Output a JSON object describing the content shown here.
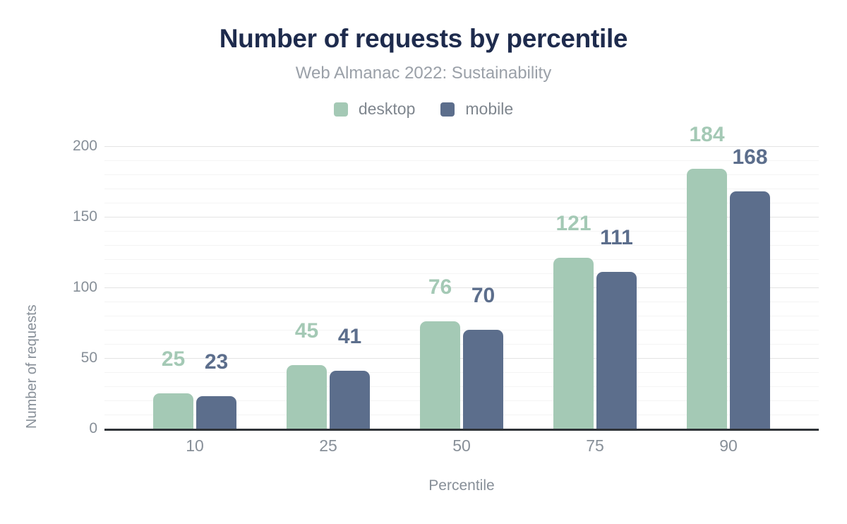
{
  "chart_data": {
    "type": "bar",
    "title": "Number of requests by percentile",
    "subtitle": "Web Almanac 2022: Sustainability",
    "categories": [
      "10",
      "25",
      "50",
      "75",
      "90"
    ],
    "series": [
      {
        "name": "desktop",
        "color": "#a4c9b5",
        "values": [
          25,
          45,
          76,
          121,
          184
        ]
      },
      {
        "name": "mobile",
        "color": "#5c6e8c",
        "values": [
          23,
          41,
          70,
          111,
          168
        ]
      }
    ],
    "xlabel": "Percentile",
    "ylabel": "Number of requests",
    "ylim": [
      0,
      200
    ],
    "yticks": [
      0,
      50,
      100,
      150,
      200
    ],
    "minor_grid_step": 10,
    "grid": "on",
    "legend_position": "top",
    "value_labels": "above bars, colored per series"
  },
  "colors": {
    "title": "#1e2b4d",
    "subtitle": "#9aa0a8",
    "axis_text": "#878f98",
    "axis_line": "#2f3338",
    "grid_major": "#e4e4e4",
    "grid_minor": "#f4f4f4",
    "background": "#ffffff"
  }
}
